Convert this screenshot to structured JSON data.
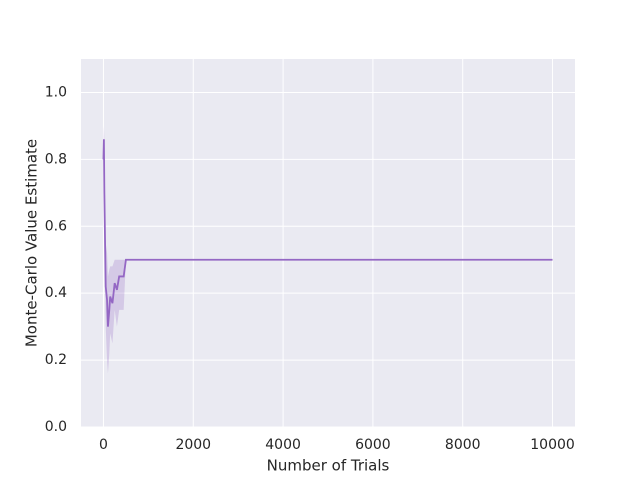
{
  "chart_data": {
    "type": "line",
    "xlabel": "Number of Trials",
    "ylabel": "Monte-Carlo Value Estimate",
    "x": [
      0,
      10,
      20,
      50,
      80,
      100,
      130,
      150,
      200,
      250,
      300,
      350,
      400,
      450,
      500,
      10000
    ],
    "values": [
      0.8,
      0.86,
      0.7,
      0.42,
      0.38,
      0.3,
      0.35,
      0.39,
      0.37,
      0.43,
      0.41,
      0.45,
      0.45,
      0.45,
      0.5,
      0.5
    ],
    "band": {
      "lower": [
        0.75,
        0.8,
        0.55,
        0.3,
        0.2,
        0.16,
        0.22,
        0.28,
        0.25,
        0.35,
        0.3,
        0.35,
        0.35,
        0.35,
        0.5,
        0.5
      ],
      "upper": [
        0.85,
        0.9,
        0.85,
        0.55,
        0.52,
        0.45,
        0.47,
        0.48,
        0.48,
        0.5,
        0.5,
        0.5,
        0.5,
        0.5,
        0.5,
        0.5
      ]
    },
    "color": "#9467c4",
    "xlim": [
      -500,
      10500
    ],
    "ylim": [
      0,
      1.1
    ],
    "xticks": [
      0,
      2000,
      4000,
      6000,
      8000,
      10000
    ],
    "yticks": [
      {
        "value": 0,
        "label": "0.0"
      },
      0.2,
      0.4,
      0.6,
      0.8,
      {
        "value": 1,
        "label": "1.0"
      }
    ],
    "grid": true
  }
}
